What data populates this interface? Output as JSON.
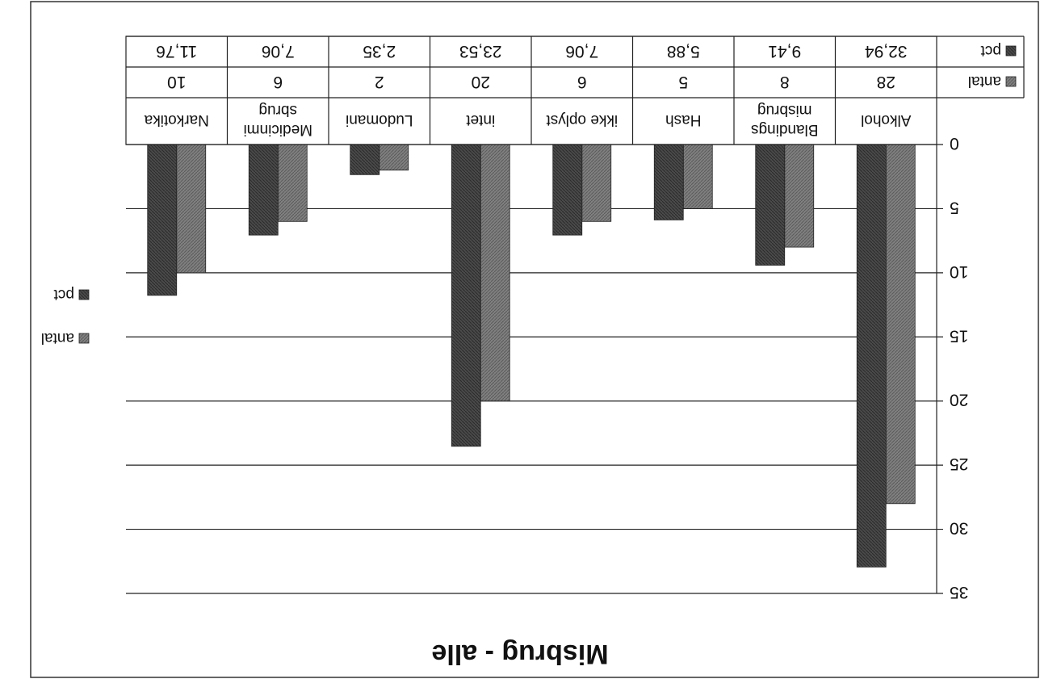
{
  "chart_data": {
    "type": "bar",
    "title": "Misbrug - alle",
    "categories": [
      "Alkohol",
      "Blandings misbrug",
      "Hash",
      "ikke oplyst",
      "intet",
      "Ludomani",
      "Medicinmi sbrug",
      "Narkotika"
    ],
    "category_lines": [
      [
        "Alkohol"
      ],
      [
        "Blandings",
        "misbrug"
      ],
      [
        "Hash"
      ],
      [
        "ikke oplyst"
      ],
      [
        "intet"
      ],
      [
        "Ludomani"
      ],
      [
        "Medicinmi",
        "sbrug"
      ],
      [
        "Narkotika"
      ]
    ],
    "series": [
      {
        "name": "antal",
        "values": [
          28,
          8,
          5,
          6,
          20,
          2,
          6,
          10
        ],
        "labels": [
          "28",
          "8",
          "5",
          "6",
          "20",
          "2",
          "6",
          "10"
        ],
        "color": "#7f7f7f"
      },
      {
        "name": "pct",
        "values": [
          32.94,
          9.41,
          5.88,
          7.06,
          23.53,
          2.35,
          7.06,
          11.76
        ],
        "labels": [
          "32,94",
          "9,41",
          "5,88",
          "7,06",
          "23,53",
          "2,35",
          "7,06",
          "11,76"
        ],
        "color": "#4d4d4d"
      }
    ],
    "yticks": [
      "0",
      "5",
      "10",
      "15",
      "20",
      "25",
      "30",
      "35"
    ],
    "ylim": [
      0,
      35
    ],
    "grid": true,
    "legend_position": "right",
    "data_table": true
  }
}
